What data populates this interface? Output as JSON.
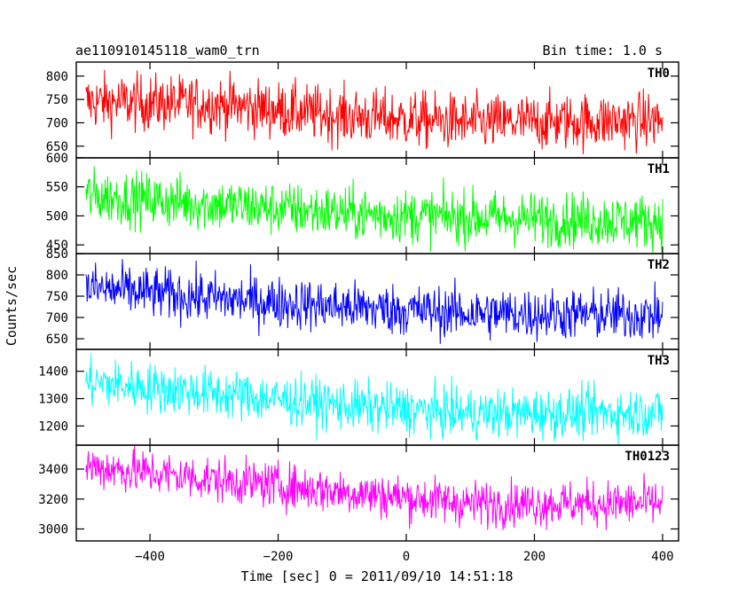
{
  "header": {
    "left_title": "ae110910145118_wam0_trn",
    "right_title": "Bin time: 1.0 s"
  },
  "chart_data": {
    "type": "line",
    "xlabel": "Time [sec] 0 = 2011/09/10 14:51:18",
    "ylabel": "Counts/sec",
    "xlim": [
      -515,
      425
    ],
    "x_ticks": [
      -400,
      -200,
      0,
      200,
      400
    ],
    "x_tick_labels": [
      "−400",
      "−200",
      "0",
      "200",
      "400"
    ],
    "x_range": [
      -500,
      400
    ],
    "grid": false,
    "panels": [
      {
        "name": "TH0",
        "color": "#ff0000",
        "ylim": [
          625,
          830
        ],
        "y_ticks": [
          650,
          700,
          750,
          800
        ],
        "y_tick_labels": [
          "650",
          "700",
          "750",
          "800"
        ],
        "trend": [
          [
            -500,
            745
          ],
          [
            -300,
            740
          ],
          [
            -100,
            715
          ],
          [
            100,
            700
          ],
          [
            400,
            705
          ]
        ],
        "noise": 30
      },
      {
        "name": "TH1",
        "color": "#00ff00",
        "ylim": [
          435,
          600
        ],
        "y_ticks": [
          450,
          500,
          550,
          600
        ],
        "y_tick_labels": [
          "450",
          "500",
          "550",
          "600"
        ],
        "trend": [
          [
            -500,
            535
          ],
          [
            -300,
            520
          ],
          [
            -100,
            505
          ],
          [
            0,
            500
          ],
          [
            400,
            490
          ]
        ],
        "noise": 23
      },
      {
        "name": "TH2",
        "color": "#0000ff",
        "ylim": [
          625,
          850
        ],
        "y_ticks": [
          650,
          700,
          750,
          800,
          850
        ],
        "y_tick_labels": [
          "650",
          "700",
          "750",
          "800",
          "850"
        ],
        "trend": [
          [
            -500,
            770
          ],
          [
            -300,
            745
          ],
          [
            -100,
            725
          ],
          [
            100,
            710
          ],
          [
            400,
            705
          ]
        ],
        "noise": 30
      },
      {
        "name": "TH3",
        "color": "#00ffff",
        "ylim": [
          1130,
          1480
        ],
        "y_ticks": [
          1200,
          1300,
          1400
        ],
        "y_tick_labels": [
          "1200",
          "1300",
          "1400"
        ],
        "trend": [
          [
            -500,
            1360
          ],
          [
            -300,
            1320
          ],
          [
            -100,
            1275
          ],
          [
            100,
            1245
          ],
          [
            400,
            1250
          ]
        ],
        "noise": 45
      },
      {
        "name": "TH0123",
        "color": "#ff00ff",
        "ylim": [
          2920,
          3560
        ],
        "y_ticks": [
          3000,
          3200,
          3400
        ],
        "y_tick_labels": [
          "3000",
          "3200",
          "3400"
        ],
        "trend": [
          [
            -500,
            3420
          ],
          [
            -300,
            3330
          ],
          [
            -100,
            3250
          ],
          [
            100,
            3170
          ],
          [
            400,
            3170
          ]
        ],
        "noise": 75
      }
    ]
  }
}
